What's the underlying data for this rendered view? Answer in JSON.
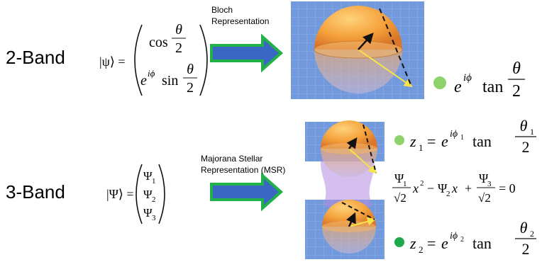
{
  "rows": [
    {
      "label": "2-Band",
      "ket": "|ψ⟩ =",
      "components": [
        {
          "func": "cos",
          "num": "θ",
          "den": "2"
        },
        {
          "base": "e",
          "sup": "iϕ",
          "func": "sin",
          "num": "θ",
          "den": "2"
        }
      ],
      "arrow_label": [
        "Bloch",
        "Representation"
      ],
      "stereo": {
        "base": "e",
        "sup": "iϕ",
        "func": "tan",
        "num": "θ",
        "den": "2"
      }
    },
    {
      "label": "3-Band",
      "ket": "|Ψ⟩ =",
      "components": [
        {
          "sym": "Ψ",
          "sub": "1"
        },
        {
          "sym": "Ψ",
          "sub": "2"
        },
        {
          "sym": "Ψ",
          "sub": "3"
        }
      ],
      "arrow_label": [
        "Majorana Stellar",
        "Representation (MSR)"
      ],
      "stars": [
        {
          "var": "z",
          "sub": "1",
          "eq": "=",
          "base": "e",
          "sup": "iϕ",
          "supsub": "1",
          "func": "tan",
          "num": "θ",
          "numsub": "1",
          "den": "2"
        },
        {
          "var": "z",
          "sub": "2",
          "eq": "=",
          "base": "e",
          "sup": "iϕ",
          "supsub": "2",
          "func": "tan",
          "num": "θ",
          "numsub": "2",
          "den": "2"
        }
      ],
      "polynomial": {
        "t1": {
          "sym": "Ψ",
          "sub": "1",
          "den": "√2",
          "var": "x",
          "pow": "2"
        },
        "op1": "−",
        "t2": {
          "sym": "Ψ",
          "sub": "2",
          "var": "x"
        },
        "op2": "+",
        "t3": {
          "sym": "Ψ",
          "sub": "3",
          "den": "√2"
        },
        "rhs": "= 0"
      }
    }
  ]
}
